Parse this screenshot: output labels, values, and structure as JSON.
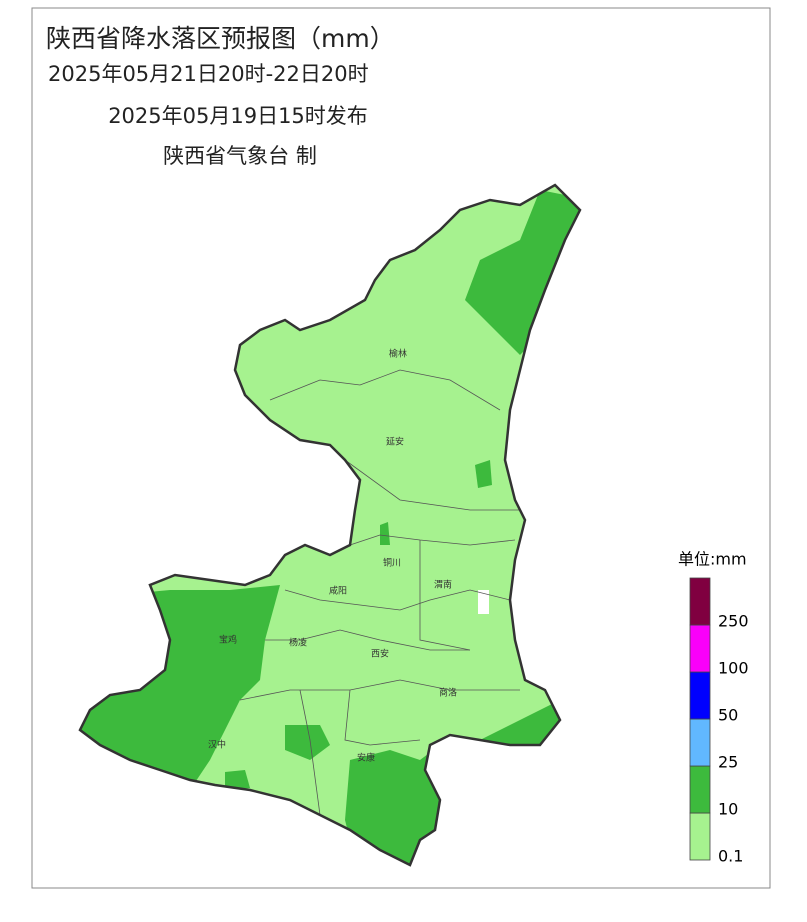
{
  "header": {
    "title": "陕西省降水落区预报图（mm）",
    "period": "2025年05月21日20时-22日20时",
    "issued": "2025年05月19日15时发布",
    "producer": "陕西省气象台 制"
  },
  "cities": [
    {
      "label": "榆林"
    },
    {
      "label": "延安"
    },
    {
      "label": "铜川"
    },
    {
      "label": "渭南"
    },
    {
      "label": "咸阳"
    },
    {
      "label": "宝鸡"
    },
    {
      "label": "杨凌"
    },
    {
      "label": "西安"
    },
    {
      "label": "商洛"
    },
    {
      "label": "汉中"
    },
    {
      "label": "安康"
    }
  ],
  "legend": {
    "unit": "单位:mm",
    "levels": [
      {
        "label": 0.1,
        "color": "#a6f28f"
      },
      {
        "label": 10,
        "color": "#3dba3d"
      },
      {
        "label": 25,
        "color": "#61b8ff"
      },
      {
        "label": 50,
        "color": "#0000fe"
      },
      {
        "label": 100,
        "color": "#fa00fa"
      },
      {
        "label": 250,
        "color": "#800040"
      }
    ]
  }
}
